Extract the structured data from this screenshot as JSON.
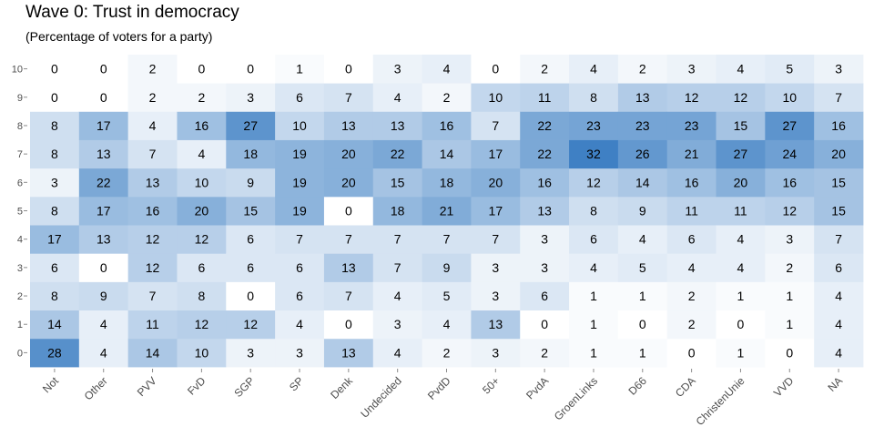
{
  "chart_data": {
    "type": "heatmap",
    "title": "Wave 0: Trust in democracy",
    "subtitle": "(Percentage of voters for a party)",
    "x_categories": [
      "Not",
      "Other",
      "PVV",
      "FvD",
      "SGP",
      "SP",
      "Denk",
      "Undecided",
      "PvdD",
      "50+",
      "PvdA",
      "GroenLinks",
      "D66",
      "CDA",
      "ChristenUnie",
      "VVD",
      "NA"
    ],
    "y_categories": [
      "0",
      "1",
      "2",
      "3",
      "4",
      "5",
      "6",
      "7",
      "8",
      "9",
      "10"
    ],
    "values": {
      "Not": [
        28,
        14,
        8,
        6,
        17,
        8,
        3,
        8,
        8,
        0,
        0
      ],
      "Other": [
        4,
        4,
        9,
        0,
        13,
        17,
        22,
        13,
        17,
        0,
        0
      ],
      "PVV": [
        14,
        11,
        7,
        12,
        12,
        16,
        13,
        7,
        4,
        2,
        2
      ],
      "FvD": [
        10,
        12,
        8,
        6,
        12,
        20,
        10,
        4,
        16,
        2,
        0
      ],
      "SGP": [
        3,
        12,
        0,
        6,
        6,
        15,
        9,
        18,
        27,
        3,
        0
      ],
      "SP": [
        3,
        4,
        6,
        6,
        7,
        19,
        19,
        19,
        10,
        6,
        1
      ],
      "Denk": [
        13,
        0,
        7,
        13,
        7,
        0,
        20,
        20,
        13,
        7,
        0
      ],
      "Undecided": [
        4,
        3,
        4,
        7,
        7,
        18,
        15,
        22,
        13,
        4,
        3
      ],
      "PvdD": [
        2,
        4,
        5,
        9,
        7,
        21,
        18,
        14,
        16,
        2,
        4
      ],
      "50+": [
        3,
        13,
        3,
        3,
        7,
        17,
        20,
        17,
        7,
        10,
        0
      ],
      "PvdA": [
        2,
        0,
        6,
        3,
        3,
        13,
        16,
        22,
        22,
        11,
        2
      ],
      "GroenLinks": [
        1,
        1,
        1,
        4,
        6,
        8,
        12,
        32,
        23,
        8,
        4
      ],
      "D66": [
        1,
        0,
        1,
        5,
        4,
        9,
        14,
        26,
        23,
        13,
        2
      ],
      "CDA": [
        0,
        2,
        2,
        4,
        6,
        11,
        16,
        21,
        23,
        12,
        3
      ],
      "ChristenUnie": [
        1,
        0,
        1,
        4,
        4,
        11,
        20,
        27,
        15,
        12,
        4
      ],
      "VVD": [
        0,
        1,
        1,
        2,
        3,
        12,
        16,
        24,
        27,
        10,
        5
      ],
      "NA": [
        4,
        4,
        4,
        6,
        7,
        15,
        15,
        20,
        16,
        7,
        3
      ]
    },
    "value_range": [
      0,
      32
    ],
    "color_low": "#ffffff",
    "color_high": "#3f80c4",
    "panel_background": "#eef2f8",
    "grid": false,
    "legend": "none"
  }
}
